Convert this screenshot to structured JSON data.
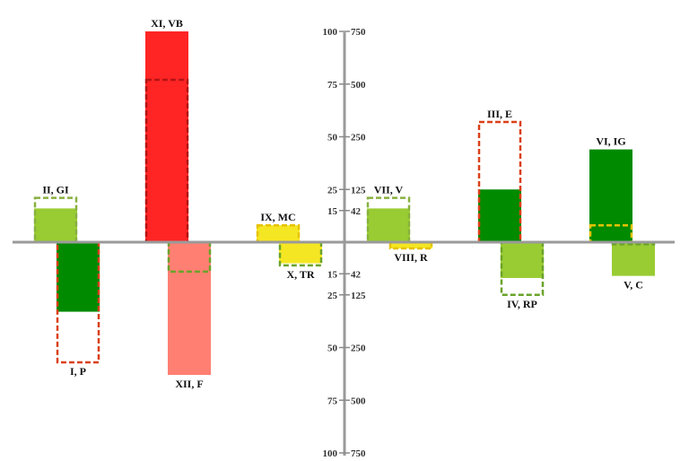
{
  "chart_data": {
    "type": "bar",
    "title": "",
    "xlabel": "",
    "ylabel": "",
    "ylim": [
      -100,
      100
    ],
    "grid": false,
    "legend": "none",
    "axis_ticks_left": [
      "100",
      "75",
      "50",
      "25",
      "15",
      "15",
      "25",
      "50",
      "75",
      "100"
    ],
    "axis_ticks_right": [
      "750",
      "500",
      "250",
      "125",
      "42",
      "42",
      "125",
      "250",
      "500",
      "750"
    ],
    "axis_tick_values": [
      100,
      75,
      50,
      25,
      15,
      -15,
      -25,
      -50,
      -75,
      100
    ],
    "bars": [
      {
        "name": "II, GI",
        "value": 16,
        "frame": 21,
        "fill": "#99cc33",
        "frame_color": "#88b040",
        "label_side": "top"
      },
      {
        "name": "I, P",
        "value": -33,
        "frame": -57,
        "fill": "#008a00",
        "frame_color": "#d9401a",
        "label_side": "bottom"
      },
      {
        "name": "XI, VB",
        "value": 100,
        "frame": 77,
        "fill": "#ff2525",
        "frame_color": "#b51414",
        "label_side": "top"
      },
      {
        "name": "XII, F",
        "value": -63,
        "frame": -14,
        "fill": "#ff7f73",
        "frame_color": "#6aa32a",
        "label_side": "bottom"
      },
      {
        "name": "IX, MC",
        "value": 8,
        "frame": 8,
        "fill": "#f5e623",
        "frame_color": "#e6c200",
        "label_side": "top"
      },
      {
        "name": "X, TR",
        "value": -10,
        "frame": -11,
        "fill": "#f5e623",
        "frame_color": "#6aa32a",
        "label_side": "bottom"
      },
      {
        "name": "VII, V",
        "value": 16,
        "frame": 21,
        "fill": "#99cc33",
        "frame_color": "#88b040",
        "label_side": "top"
      },
      {
        "name": "VIII, R",
        "value": -3,
        "frame": -3,
        "fill": "#f5e623",
        "frame_color": "#e6c200",
        "label_side": "bottom"
      },
      {
        "name": "III, E",
        "value": 25,
        "frame": 57,
        "fill": "#008a00",
        "frame_color": "#d9401a",
        "label_side": "top"
      },
      {
        "name": "IV, RP",
        "value": -17,
        "frame": -25,
        "fill": "#99cc33",
        "frame_color": "#6aa32a",
        "label_side": "bottom"
      },
      {
        "name": "VI, IG",
        "value": 44,
        "frame": 8,
        "fill": "#008a00",
        "frame_color": "#e6c200",
        "label_side": "top"
      },
      {
        "name": "V, C",
        "value": -16,
        "frame": -1,
        "fill": "#99cc33",
        "frame_color": "#6aa32a",
        "label_side": "bottom"
      }
    ]
  }
}
